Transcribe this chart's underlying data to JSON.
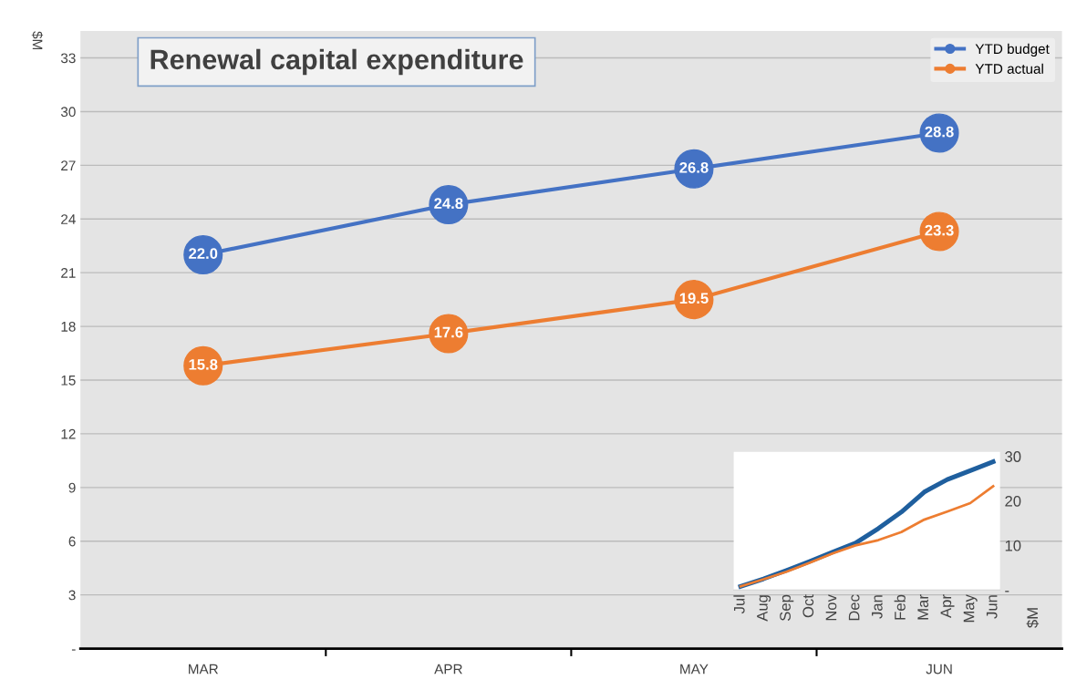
{
  "chart_data": [
    {
      "type": "line",
      "title": "Renewal capital expenditure",
      "ylabel": "$M",
      "categories": [
        "MAR",
        "APR",
        "MAY",
        "JUN"
      ],
      "series": [
        {
          "name": "YTD budget",
          "color": "#4472c4",
          "values": [
            22.0,
            24.8,
            26.8,
            28.8
          ],
          "value_labels": [
            "22.0",
            "24.8",
            "26.8",
            "28.8"
          ]
        },
        {
          "name": "YTD actual",
          "color": "#ed7d31",
          "values": [
            15.8,
            17.6,
            19.5,
            23.3
          ],
          "value_labels": [
            "15.8",
            "17.6",
            "19.5",
            "23.3"
          ]
        }
      ],
      "ylim": [
        0,
        34.5
      ],
      "yticks": [
        {
          "value": 0,
          "label": "-"
        },
        3,
        6,
        9,
        12,
        15,
        18,
        21,
        24,
        27,
        30,
        33
      ],
      "grid": "y",
      "legend": "top right",
      "marker": "circle",
      "line_style": "solid"
    },
    {
      "type": "line",
      "ylabel": "$M",
      "categories": [
        "Jul",
        "Aug",
        "Sep",
        "Oct",
        "Nov",
        "Dec",
        "Jan",
        "Feb",
        "Mar",
        "Apr",
        "May",
        "Jun"
      ],
      "series": [
        {
          "color": "#1f5f9e",
          "values": [
            0.8,
            2.5,
            4.4,
            6.4,
            8.5,
            10.5,
            13.8,
            17.5,
            22.0,
            24.8,
            26.8,
            28.8
          ]
        },
        {
          "color": "#ed7d31",
          "values": [
            0.8,
            2.4,
            4.1,
            6.1,
            8.2,
            10.0,
            11.2,
            13.0,
            15.8,
            17.6,
            19.5,
            23.3
          ]
        }
      ],
      "ylim": [
        0,
        31
      ],
      "yticks": [
        {
          "value": 0,
          "label": "-"
        },
        10,
        20,
        30
      ],
      "line_style": "solid"
    }
  ]
}
